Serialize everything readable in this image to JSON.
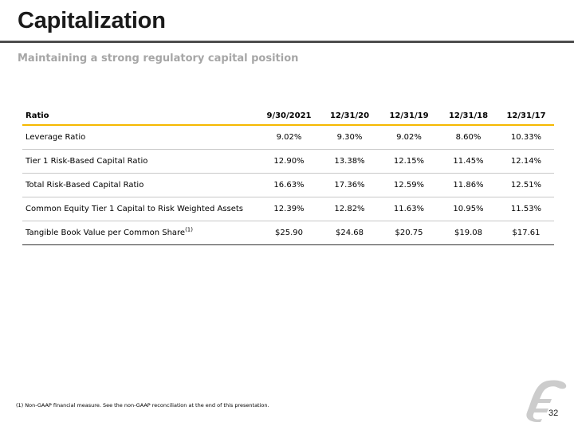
{
  "header": {
    "title": "Capitalization",
    "subtitle": "Maintaining a strong regulatory capital position"
  },
  "table": {
    "columns": [
      "Ratio",
      "9/30/2021",
      "12/31/20",
      "12/31/19",
      "12/31/18",
      "12/31/17"
    ],
    "rows": [
      {
        "label": "Leverage Ratio",
        "superscript": "",
        "values": [
          "9.02%",
          "9.30%",
          "9.02%",
          "8.60%",
          "10.33%"
        ]
      },
      {
        "label": "Tier 1 Risk-Based Capital Ratio",
        "superscript": "",
        "values": [
          "12.90%",
          "13.38%",
          "12.15%",
          "11.45%",
          "12.14%"
        ]
      },
      {
        "label": "Total Risk-Based Capital Ratio",
        "superscript": "",
        "values": [
          "16.63%",
          "17.36%",
          "12.59%",
          "11.86%",
          "12.51%"
        ]
      },
      {
        "label": "Common Equity Tier 1 Capital to Risk Weighted Assets",
        "superscript": "",
        "values": [
          "12.39%",
          "12.82%",
          "11.63%",
          "10.95%",
          "11.53%"
        ]
      },
      {
        "label": "Tangible Book Value per Common Share",
        "superscript": "(1)",
        "values": [
          "$25.90",
          "$24.68",
          "$20.75",
          "$19.08",
          "$17.61"
        ]
      }
    ]
  },
  "footer": {
    "footnote": "(1) Non-GAAP financial measure. See the non-GAAP reconciliation at the end of this presentation.",
    "page_number": "32",
    "logo_icon": "bank-logo-icon"
  },
  "colors": {
    "title_rule": "#4d4d4d",
    "header_rule": "#f5b800",
    "subtitle": "#a6a6a6",
    "logo": "#cccccc"
  }
}
